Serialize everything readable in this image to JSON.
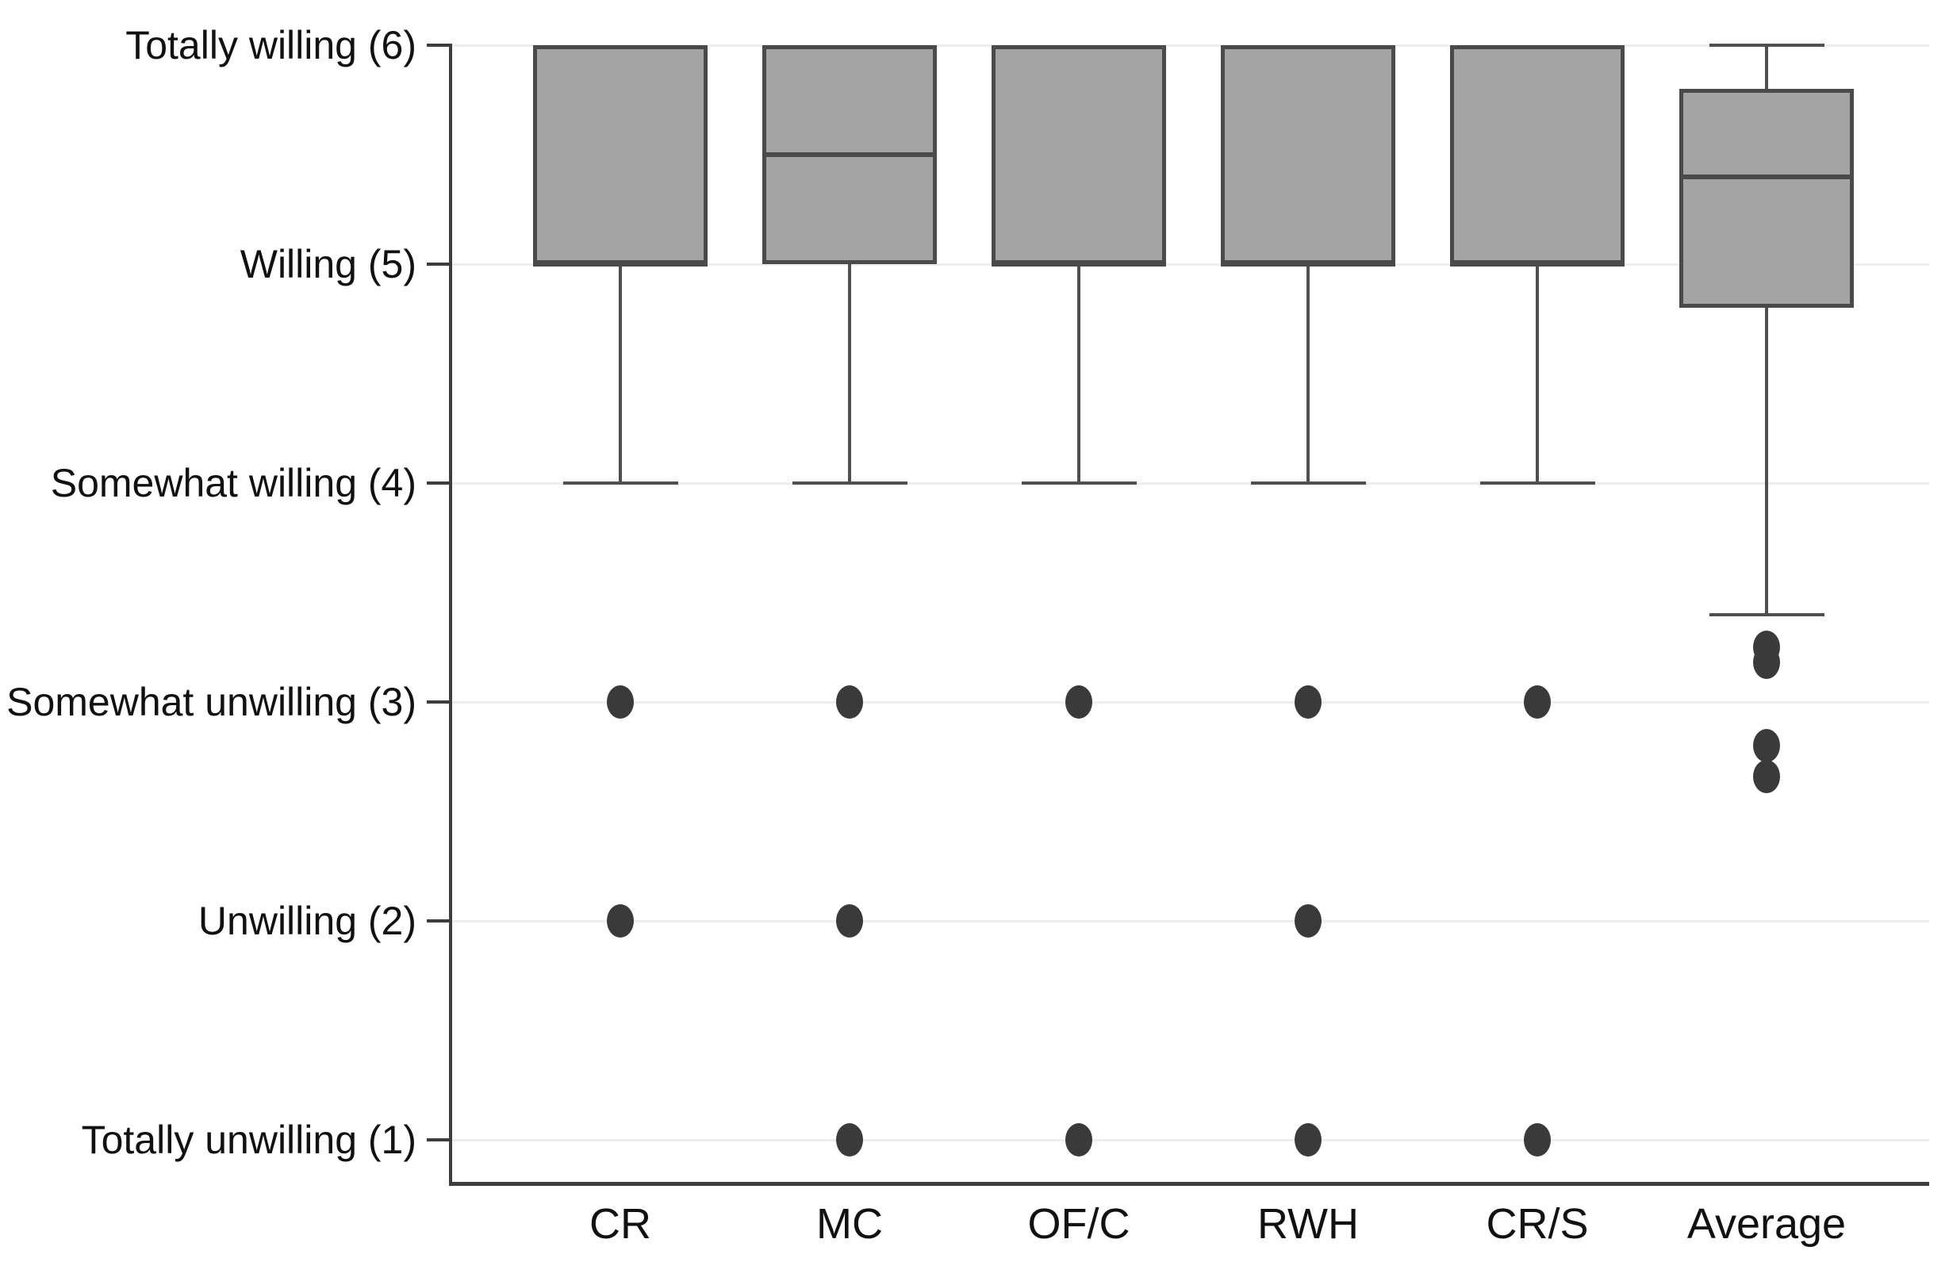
{
  "chart_data": {
    "type": "boxplot",
    "title": "",
    "xlabel": "",
    "ylabel": "",
    "legend": "none",
    "grid": true,
    "categories": [
      "CR",
      "MC",
      "OF/C",
      "RWH",
      "CR/S",
      "Average"
    ],
    "y_axis": {
      "range": [
        1,
        6
      ],
      "ticks": [
        {
          "value": 6,
          "label": "Totally willing (6)"
        },
        {
          "value": 5,
          "label": "Willing (5)"
        },
        {
          "value": 4,
          "label": "Somewhat willing (4)"
        },
        {
          "value": 3,
          "label": "Somewhat unwilling (3)"
        },
        {
          "value": 2,
          "label": "Unwilling (2)"
        },
        {
          "value": 1,
          "label": "Totally unwilling (1)"
        }
      ]
    },
    "series": [
      {
        "name": "CR",
        "q1": 5,
        "median": 5,
        "q3": 6,
        "whisker_low": 4,
        "whisker_high": 6,
        "outliers": [
          3,
          2
        ]
      },
      {
        "name": "MC",
        "q1": 5,
        "median": 5.5,
        "q3": 6,
        "whisker_low": 4,
        "whisker_high": 6,
        "outliers": [
          3,
          2,
          1
        ]
      },
      {
        "name": "OF/C",
        "q1": 5,
        "median": 5,
        "q3": 6,
        "whisker_low": 4,
        "whisker_high": 6,
        "outliers": [
          3,
          1
        ]
      },
      {
        "name": "RWH",
        "q1": 5,
        "median": 5,
        "q3": 6,
        "whisker_low": 4,
        "whisker_high": 6,
        "outliers": [
          3,
          2,
          1
        ]
      },
      {
        "name": "CR/S",
        "q1": 5,
        "median": 5,
        "q3": 6,
        "whisker_low": 4,
        "whisker_high": 6,
        "outliers": [
          3,
          1
        ]
      },
      {
        "name": "Average",
        "q1": 4.8,
        "median": 5.4,
        "q3": 5.8,
        "whisker_low": 3.4,
        "whisker_high": 6,
        "outliers": [
          3.25,
          3.18,
          2.8,
          2.66
        ]
      }
    ],
    "colors": {
      "background": "#ffffff",
      "box_fill": "#a4a4a4",
      "box_border": "#4a4a4a",
      "whisker": "#4f4f4f",
      "outlier": "#3a3a3a",
      "gridline": "#edefef",
      "axis": "#3d3d3d",
      "label_text": "#111111"
    }
  }
}
